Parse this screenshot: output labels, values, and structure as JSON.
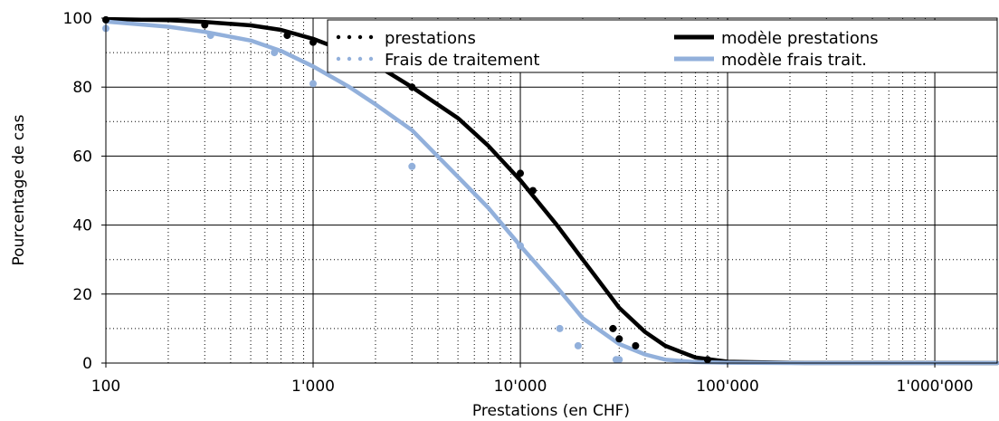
{
  "chart_data": {
    "type": "scatter",
    "x_scale": "log",
    "xlim": [
      100,
      2000000
    ],
    "ylim": [
      0,
      100
    ],
    "xlabel": "Prestations (en CHF)",
    "ylabel": "Pourcentage de cas",
    "x_ticks": [
      {
        "value": 100,
        "label": "100"
      },
      {
        "value": 1000,
        "label": "1'000"
      },
      {
        "value": 10000,
        "label": "10'000"
      },
      {
        "value": 100000,
        "label": "100'000"
      },
      {
        "value": 1000000,
        "label": "1'000'000"
      }
    ],
    "y_ticks": [
      {
        "value": 0,
        "label": "0"
      },
      {
        "value": 20,
        "label": "20"
      },
      {
        "value": 40,
        "label": "40"
      },
      {
        "value": 60,
        "label": "60"
      },
      {
        "value": 80,
        "label": "80"
      },
      {
        "value": 100,
        "label": "100"
      }
    ],
    "grid": true,
    "legend_position": "top-right",
    "series": [
      {
        "name": "prestations",
        "kind": "points",
        "color": "#000000",
        "points": [
          [
            100,
            99.5
          ],
          [
            300,
            98
          ],
          [
            750,
            95
          ],
          [
            1000,
            93
          ],
          [
            3000,
            80
          ],
          [
            10000,
            55
          ],
          [
            11500,
            50
          ],
          [
            28000,
            10
          ],
          [
            30000,
            7
          ],
          [
            36000,
            5
          ],
          [
            80000,
            1
          ]
        ]
      },
      {
        "name": "Frais de traitement",
        "kind": "points",
        "color": "#92b0db",
        "points": [
          [
            100,
            97
          ],
          [
            320,
            95
          ],
          [
            650,
            90
          ],
          [
            1000,
            81
          ],
          [
            3000,
            57
          ],
          [
            10000,
            34
          ],
          [
            15500,
            10
          ],
          [
            19000,
            5
          ],
          [
            29000,
            1
          ],
          [
            30000,
            1
          ]
        ]
      },
      {
        "name": "modèle prestations",
        "kind": "line",
        "color": "#000000",
        "points": [
          [
            100,
            99.7
          ],
          [
            200,
            99.4
          ],
          [
            300,
            98.9
          ],
          [
            500,
            97.9
          ],
          [
            700,
            96.6
          ],
          [
            1000,
            94
          ],
          [
            1500,
            90
          ],
          [
            2000,
            86.5
          ],
          [
            3000,
            80
          ],
          [
            5000,
            71
          ],
          [
            7000,
            63
          ],
          [
            10000,
            53
          ],
          [
            15000,
            40
          ],
          [
            20000,
            30
          ],
          [
            30000,
            16
          ],
          [
            40000,
            9
          ],
          [
            50000,
            5
          ],
          [
            70000,
            1.6
          ],
          [
            100000,
            0.4
          ],
          [
            200000,
            0.05
          ],
          [
            2000000,
            0
          ]
        ]
      },
      {
        "name": "modèle frais trait.",
        "kind": "line",
        "color": "#92b0db",
        "points": [
          [
            100,
            99
          ],
          [
            200,
            97.5
          ],
          [
            300,
            96
          ],
          [
            500,
            93.5
          ],
          [
            700,
            90.5
          ],
          [
            1000,
            86
          ],
          [
            1500,
            80
          ],
          [
            2000,
            75
          ],
          [
            3000,
            67.5
          ],
          [
            5000,
            54
          ],
          [
            7000,
            45
          ],
          [
            10000,
            34
          ],
          [
            15000,
            22
          ],
          [
            20000,
            13
          ],
          [
            30000,
            5.5
          ],
          [
            40000,
            2.5
          ],
          [
            50000,
            1
          ],
          [
            70000,
            0.3
          ],
          [
            100000,
            0.1
          ],
          [
            200000,
            0
          ],
          [
            2000000,
            0
          ]
        ]
      }
    ]
  }
}
